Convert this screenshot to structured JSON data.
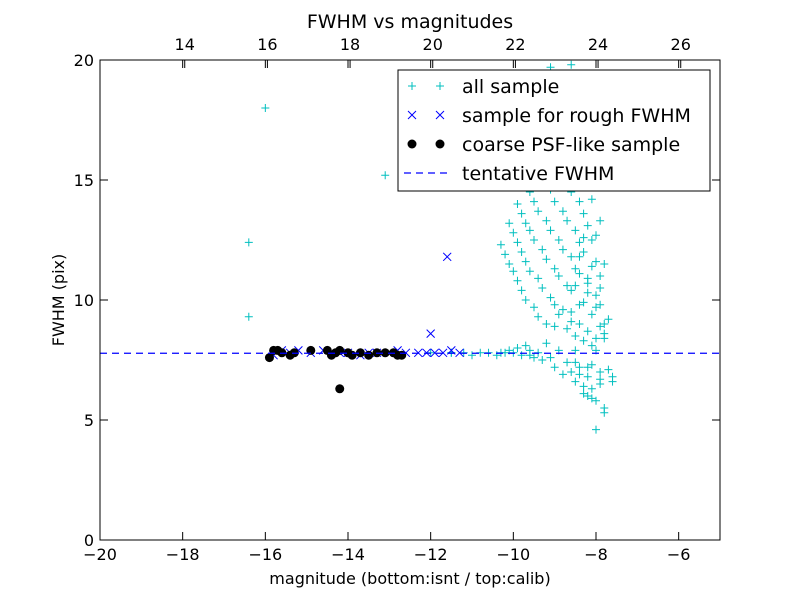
{
  "chart_data": {
    "type": "scatter",
    "title": "FWHM vs magnitudes",
    "xlabel": "magnitude (bottom:isnt / top:calib)",
    "ylabel": "FWHM (pix)",
    "xlim": [
      -20,
      -5
    ],
    "ylim": [
      0,
      20
    ],
    "x_ticks": [
      -20,
      -18,
      -16,
      -14,
      -12,
      -10,
      -8,
      -6
    ],
    "x_tick_labels": [
      "−20",
      "−18",
      "−16",
      "−14",
      "−12",
      "−10",
      "−8",
      "−6"
    ],
    "y_ticks": [
      0,
      5,
      10,
      15,
      20
    ],
    "y_tick_labels": [
      "0",
      "5",
      "10",
      "15",
      "20"
    ],
    "top_axis": {
      "ticks": [
        14,
        16,
        18,
        20,
        22,
        24,
        26
      ],
      "tick_labels": [
        "14",
        "16",
        "18",
        "20",
        "22",
        "24",
        "26"
      ],
      "calib_offset": 31.95
    },
    "grid": false,
    "legend_position": "top-right",
    "colors": {
      "all_sample": "#00bfbf",
      "rough_sample": "#0000ff",
      "psf_sample": "#000000",
      "tentative": "#0000ff"
    },
    "tentative_fwhm": 7.78,
    "series": [
      {
        "name": "all sample",
        "marker": "plus",
        "x": [
          -16.0,
          -16.4,
          -16.4,
          -13.1,
          -9.1,
          -8.0,
          -8.6,
          -8.2,
          -7.9,
          -11.5,
          -9.6,
          -8.5,
          -12.0,
          -11.5,
          -11.2,
          -11.0,
          -10.8,
          -10.6,
          -10.4,
          -10.3,
          -10.2,
          -10.1,
          -10.0,
          -9.9,
          -9.8,
          -9.7,
          -9.6,
          -9.5,
          -9.4,
          -9.3,
          -9.2,
          -9.1,
          -9.0,
          -8.9,
          -8.8,
          -8.7,
          -8.6,
          -8.5,
          -8.4,
          -8.3,
          -8.2,
          -8.1,
          -8.0,
          -7.9,
          -7.8,
          -7.7,
          -7.6,
          -8.4,
          -8.3,
          -8.2,
          -8.1,
          -8.0,
          -7.9,
          -8.5,
          -8.3,
          -8.1,
          -7.8,
          -8.6,
          -8.4,
          -8.2,
          -8.0,
          -7.9,
          -8.7,
          -8.5,
          -8.3,
          -8.1,
          -8.0,
          -7.8,
          -8.9,
          -8.6,
          -8.4,
          -8.2,
          -8.0,
          -7.9,
          -7.7,
          -9.0,
          -8.8,
          -8.6,
          -8.4,
          -8.2,
          -8.0,
          -7.8,
          -9.2,
          -9.0,
          -8.7,
          -8.5,
          -8.3,
          -8.1,
          -7.9,
          -9.4,
          -9.1,
          -8.9,
          -8.6,
          -8.4,
          -8.2,
          -8.0,
          -7.8,
          -9.5,
          -9.3,
          -9.0,
          -8.8,
          -8.5,
          -8.3,
          -8.1,
          -7.9,
          -9.7,
          -9.4,
          -9.2,
          -8.9,
          -8.7,
          -8.4,
          -8.2,
          -8.0,
          -9.8,
          -9.6,
          -9.3,
          -9.1,
          -8.8,
          -8.6,
          -8.3,
          -8.1,
          -9.9,
          -9.7,
          -9.5,
          -9.2,
          -9.0,
          -8.7,
          -8.5,
          -8.2,
          -10.0,
          -9.8,
          -9.6,
          -9.4,
          -9.1,
          -8.9,
          -8.6,
          -8.4,
          -10.1,
          -9.9,
          -9.7,
          -9.5,
          -9.3,
          -9.0,
          -8.8,
          -8.5,
          -10.2,
          -10.0,
          -9.8,
          -9.6,
          -9.4,
          -9.2,
          -8.9,
          -8.7,
          -10.3,
          -10.1,
          -9.9,
          -9.7,
          -9.5,
          -9.3,
          -9.1,
          -8.8,
          -8.5,
          -8.2,
          -7.9,
          -7.6,
          -8.3,
          -8.1,
          -7.9,
          -8.0,
          -7.8,
          -8.2,
          -8.4,
          -8.1
        ],
        "y": [
          18.0,
          12.4,
          9.3,
          15.2,
          19.7,
          19.4,
          19.8,
          18.9,
          18.3,
          7.8,
          7.7,
          7.9,
          7.8,
          7.8,
          7.8,
          7.7,
          7.8,
          7.8,
          7.7,
          7.8,
          7.8,
          7.9,
          7.8,
          8.0,
          7.7,
          8.1,
          7.9,
          7.6,
          7.8,
          7.5,
          8.2,
          7.6,
          7.2,
          7.9,
          6.9,
          7.4,
          7.0,
          6.6,
          7.2,
          6.4,
          6.8,
          6.3,
          5.8,
          6.5,
          5.3,
          7.1,
          6.6,
          11.8,
          12.6,
          10.9,
          11.4,
          10.2,
          9.8,
          10.6,
          9.9,
          9.4,
          9.0,
          9.5,
          9.0,
          8.7,
          8.4,
          8.9,
          8.8,
          8.5,
          8.3,
          8.1,
          7.9,
          8.6,
          9.4,
          9.1,
          9.8,
          10.3,
          9.7,
          10.5,
          9.2,
          8.9,
          9.6,
          10.4,
          11.1,
          10.7,
          11.6,
          8.4,
          9.0,
          9.8,
          10.6,
          11.3,
          12.0,
          12.5,
          11.0,
          9.3,
          10.1,
          11.0,
          11.8,
          12.4,
          13.1,
          12.7,
          11.5,
          9.7,
          10.5,
          11.3,
          12.1,
          12.9,
          13.6,
          14.2,
          13.3,
          10.0,
          10.9,
          11.7,
          12.5,
          13.3,
          14.1,
          14.8,
          15.4,
          10.4,
          11.2,
          12.1,
          12.9,
          13.7,
          14.5,
          15.3,
          16.0,
          10.8,
          11.6,
          12.5,
          13.3,
          14.1,
          15.0,
          15.8,
          16.5,
          11.2,
          12.0,
          12.9,
          13.7,
          14.6,
          15.4,
          16.2,
          17.0,
          11.5,
          12.4,
          13.2,
          14.1,
          14.9,
          15.8,
          16.6,
          17.4,
          11.9,
          12.8,
          13.6,
          14.5,
          15.3,
          16.2,
          17.1,
          17.9,
          12.3,
          13.2,
          14.0,
          14.9,
          15.7,
          16.6,
          17.5,
          18.3,
          7.4,
          7.2,
          7.0,
          6.8,
          6.1,
          5.9,
          6.7,
          4.6,
          5.5,
          6.0,
          6.9,
          7.3
        ]
      },
      {
        "name": "sample for rough FWHM",
        "marker": "x",
        "x": [
          -15.8,
          -15.6,
          -15.4,
          -15.2,
          -14.9,
          -14.6,
          -14.4,
          -14.2,
          -14.0,
          -13.7,
          -13.5,
          -13.3,
          -13.0,
          -12.8,
          -12.6,
          -12.3,
          -12.1,
          -11.9,
          -11.7,
          -11.5,
          -11.3,
          -11.6,
          -12.0
        ],
        "y": [
          7.7,
          7.9,
          7.8,
          7.9,
          7.8,
          7.9,
          7.8,
          7.8,
          7.8,
          7.7,
          7.8,
          7.8,
          7.8,
          7.9,
          7.8,
          7.8,
          7.8,
          7.8,
          7.8,
          7.9,
          7.8,
          11.8,
          8.6
        ]
      },
      {
        "name": "coarse PSF-like sample",
        "marker": "dot",
        "x": [
          -15.9,
          -15.8,
          -15.7,
          -15.6,
          -15.4,
          -15.3,
          -14.9,
          -14.5,
          -14.4,
          -14.3,
          -14.2,
          -14.0,
          -13.9,
          -13.7,
          -13.5,
          -13.3,
          -13.1,
          -12.9,
          -12.8,
          -12.7,
          -14.2
        ],
        "y": [
          7.6,
          7.9,
          7.9,
          7.8,
          7.7,
          7.8,
          7.9,
          7.9,
          7.7,
          7.8,
          7.9,
          7.8,
          7.7,
          7.8,
          7.7,
          7.8,
          7.8,
          7.8,
          7.7,
          7.7,
          6.3
        ]
      },
      {
        "name": "tentative FWHM",
        "marker": "dashed-line",
        "x": [
          -20,
          -5
        ],
        "y": [
          7.78,
          7.78
        ]
      }
    ]
  }
}
